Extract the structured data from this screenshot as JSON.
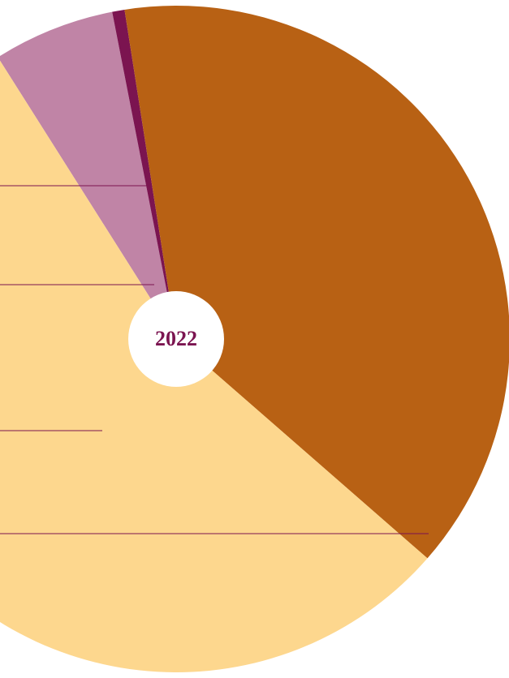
{
  "chart_data": {
    "type": "pie",
    "center_label": "2022",
    "values": [
      5.9,
      0.6,
      38.9,
      54.6
    ],
    "colors": [
      "#c084a6",
      "#7b1450",
      "#b86114",
      "#fdd78e"
    ]
  }
}
